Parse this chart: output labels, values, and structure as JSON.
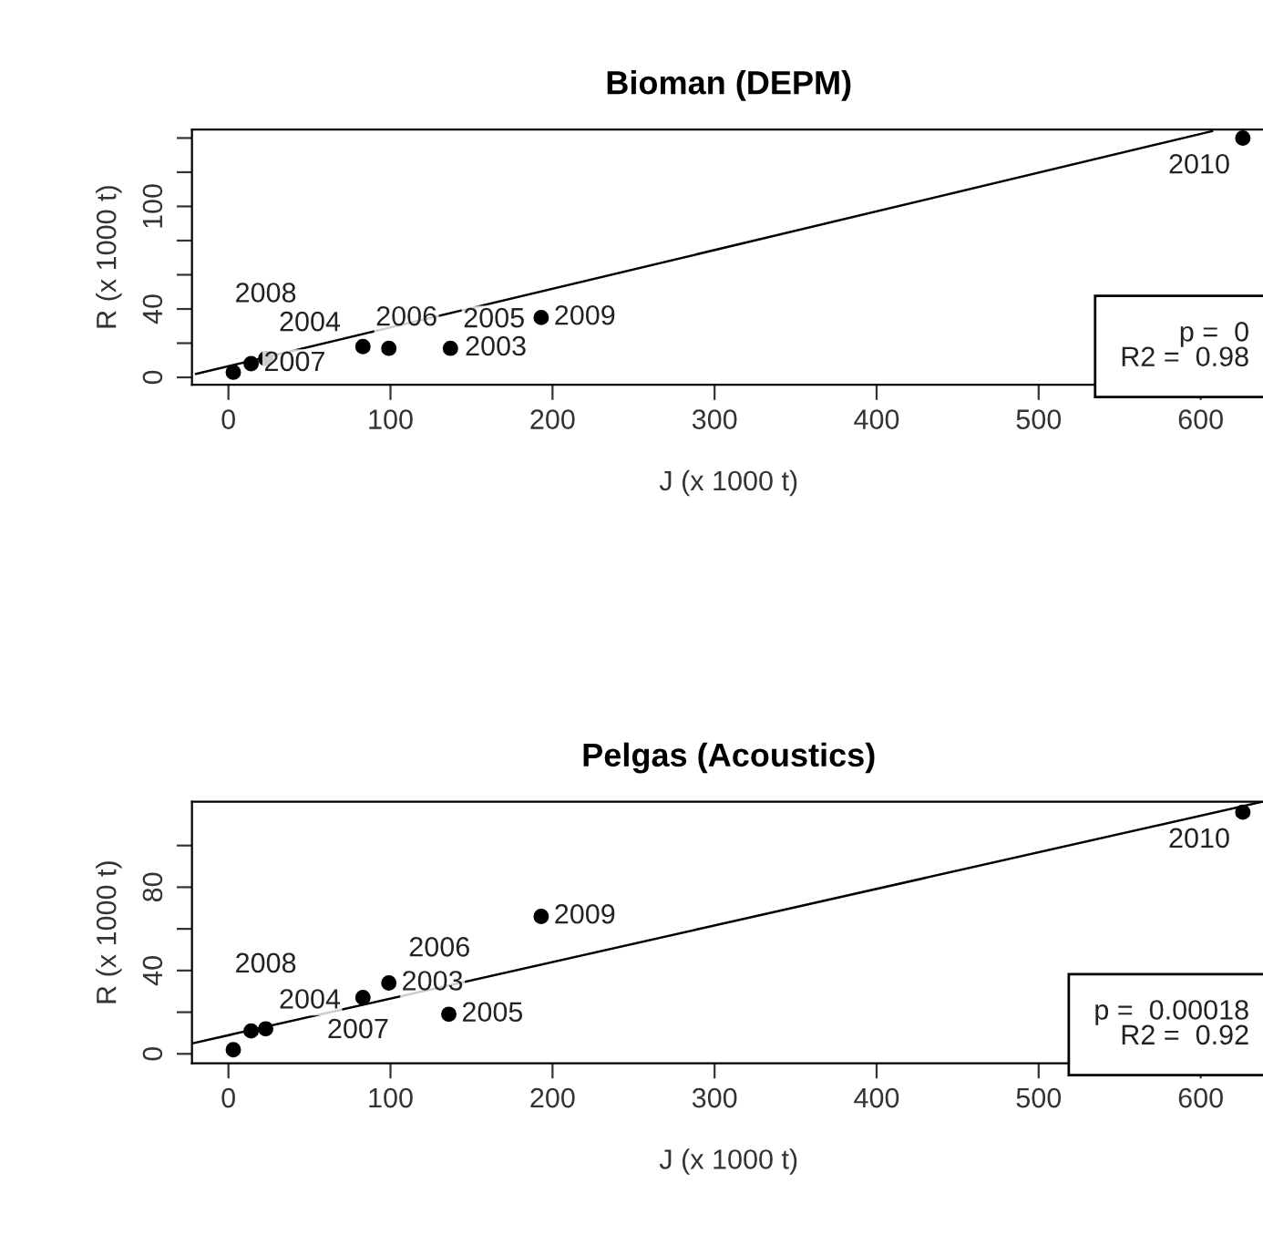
{
  "chart_data": [
    {
      "type": "scatter",
      "title": "Bioman (DEPM)",
      "xlabel": "J (x 1000 t)",
      "ylabel": "R (x 1000 t)",
      "grid": false,
      "legend": false,
      "xlim": [
        -22.5,
        640
      ],
      "xticks": [
        0,
        100,
        200,
        300,
        400,
        500,
        600
      ],
      "ylim": [
        -4.3,
        145
      ],
      "yticks": [
        0,
        {
          "value": 20,
          "label": null
        },
        40,
        {
          "value": 60,
          "label": null
        },
        {
          "value": 80,
          "label": null
        },
        100,
        {
          "value": 120,
          "label": null
        },
        {
          "value": 140,
          "label": null
        }
      ],
      "series": [
        {
          "color": "#000000",
          "marker": "circle",
          "x": [
            3,
            14,
            23,
            83,
            99,
            137,
            193,
            626
          ],
          "values": [
            3,
            8,
            11,
            18,
            17,
            17,
            35,
            140
          ]
        },
        {
          "type": "line",
          "color": "#000000",
          "x": [
            -20,
            607
          ],
          "values": [
            2,
            144
          ]
        }
      ],
      "annotations": [
        {
          "text": "2004",
          "x": 3,
          "y": 3
        },
        {
          "text": "2007",
          "x": 14,
          "y": 8
        },
        {
          "text": "2008",
          "x": 23,
          "y": 11
        },
        {
          "text": "2006",
          "x": 83,
          "y": 18
        },
        {
          "text": "2003",
          "x": 99,
          "y": 17
        },
        {
          "text": "2005",
          "x": 137,
          "y": 17
        },
        {
          "text": "2009",
          "x": 193,
          "y": 35
        },
        {
          "text": "2010",
          "x": 626,
          "y": 140
        },
        "p =  0",
        "R2 =  0.98"
      ]
    },
    {
      "type": "scatter",
      "title": "Pelgas (Acoustics)",
      "xlabel": "J (x 1000 t)",
      "ylabel": "R (x 1000 t)",
      "grid": false,
      "legend": false,
      "xlim": [
        -22.5,
        640
      ],
      "xticks": [
        0,
        100,
        200,
        300,
        400,
        500,
        600
      ],
      "ylim": [
        -4.5,
        121
      ],
      "yticks": [
        0,
        {
          "value": 20,
          "label": null
        },
        40,
        {
          "value": 60,
          "label": null
        },
        80,
        {
          "value": 100,
          "label": null
        }
      ],
      "series": [
        {
          "color": "#000000",
          "marker": "circle",
          "x": [
            3,
            14,
            23,
            83,
            99,
            136,
            193,
            626
          ],
          "values": [
            2,
            11,
            12,
            27,
            34,
            19,
            66,
            116
          ]
        },
        {
          "type": "line",
          "color": "#000000",
          "x": [
            -22.5,
            638
          ],
          "values": [
            5,
            121
          ]
        }
      ],
      "annotations": [
        {
          "text": "2004",
          "x": 3,
          "y": 2
        },
        {
          "text": "2007",
          "x": 14,
          "y": 11
        },
        {
          "text": "2008",
          "x": 23,
          "y": 12
        },
        {
          "text": "2006",
          "x": 83,
          "y": 27
        },
        {
          "text": "2003",
          "x": 99,
          "y": 34
        },
        {
          "text": "2005",
          "x": 136,
          "y": 19
        },
        {
          "text": "2009",
          "x": 193,
          "y": 66
        },
        {
          "text": "2010",
          "x": 626,
          "y": 116
        },
        "p =  0.00018",
        "R2 =  0.92"
      ]
    }
  ]
}
